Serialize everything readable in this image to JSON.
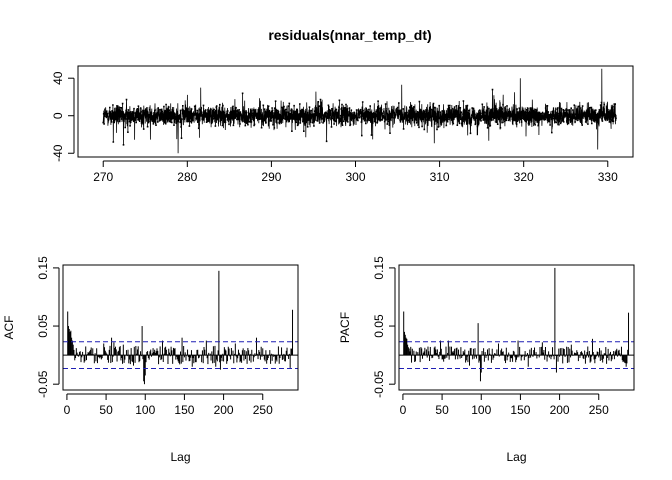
{
  "chart_data": [
    {
      "type": "line",
      "id": "residuals",
      "title": "residuals(nnar_temp_dt)",
      "xlabel": "",
      "ylabel": "",
      "xlim": [
        267,
        333
      ],
      "ylim": [
        -44,
        53
      ],
      "xticks": [
        270,
        280,
        290,
        300,
        310,
        320,
        330
      ],
      "yticks": [
        -40,
        0,
        40
      ],
      "x_range": [
        270,
        331
      ],
      "n_points": 3500,
      "typical_spread": 10,
      "extremes": [
        {
          "x": 329.3,
          "y": 50
        },
        {
          "x": 278.9,
          "y": -40
        },
        {
          "x": 328.8,
          "y": -36
        },
        {
          "x": 319.6,
          "y": 40
        },
        {
          "x": 305.5,
          "y": 33
        },
        {
          "x": 272.4,
          "y": -31
        },
        {
          "x": 281.6,
          "y": 30
        },
        {
          "x": 271.2,
          "y": -28
        }
      ],
      "marker": "dot-line",
      "grid": false
    },
    {
      "type": "bar",
      "id": "acf",
      "title": "",
      "xlabel": "Lag",
      "ylabel": "ACF",
      "xlim": [
        -5,
        295
      ],
      "ylim": [
        -0.06,
        0.155
      ],
      "xticks": [
        0,
        50,
        100,
        150,
        200,
        250
      ],
      "yticks": [
        -0.05,
        0.05,
        0.15
      ],
      "conf_band": 0.023,
      "n_lags": 288,
      "spikes": [
        {
          "lag": 1,
          "value": 0.075
        },
        {
          "lag": 2,
          "value": 0.05
        },
        {
          "lag": 3,
          "value": 0.045
        },
        {
          "lag": 4,
          "value": 0.04
        },
        {
          "lag": 5,
          "value": 0.042
        },
        {
          "lag": 6,
          "value": 0.03
        },
        {
          "lag": 7,
          "value": 0.025
        },
        {
          "lag": 8,
          "value": 0.018
        },
        {
          "lag": 12,
          "value": 0.012
        },
        {
          "lag": 22,
          "value": -0.013
        },
        {
          "lag": 35,
          "value": -0.014
        },
        {
          "lag": 47,
          "value": 0.02
        },
        {
          "lag": 57,
          "value": 0.03
        },
        {
          "lag": 60,
          "value": 0.022
        },
        {
          "lag": 72,
          "value": 0.018
        },
        {
          "lag": 85,
          "value": -0.018
        },
        {
          "lag": 96,
          "value": 0.05
        },
        {
          "lag": 98,
          "value": -0.045
        },
        {
          "lag": 99,
          "value": -0.05
        },
        {
          "lag": 100,
          "value": -0.035
        },
        {
          "lag": 110,
          "value": 0.012
        },
        {
          "lag": 122,
          "value": 0.025
        },
        {
          "lag": 135,
          "value": -0.015
        },
        {
          "lag": 147,
          "value": 0.03
        },
        {
          "lag": 160,
          "value": -0.02
        },
        {
          "lag": 178,
          "value": 0.025
        },
        {
          "lag": 190,
          "value": -0.02
        },
        {
          "lag": 194,
          "value": 0.145
        },
        {
          "lag": 196,
          "value": -0.025
        },
        {
          "lag": 215,
          "value": 0.02
        },
        {
          "lag": 230,
          "value": -0.015
        },
        {
          "lag": 242,
          "value": 0.03
        },
        {
          "lag": 260,
          "value": -0.015
        },
        {
          "lag": 270,
          "value": 0.015
        },
        {
          "lag": 285,
          "value": -0.022
        },
        {
          "lag": 288,
          "value": 0.078
        }
      ],
      "noise_amplitude": 0.016,
      "grid": false
    },
    {
      "type": "bar",
      "id": "pacf",
      "title": "",
      "xlabel": "Lag",
      "ylabel": "PACF",
      "xlim": [
        -5,
        295
      ],
      "ylim": [
        -0.06,
        0.155
      ],
      "xticks": [
        0,
        50,
        100,
        150,
        200,
        250
      ],
      "yticks": [
        -0.05,
        0.05,
        0.15
      ],
      "conf_band": 0.023,
      "n_lags": 288,
      "spikes": [
        {
          "lag": 1,
          "value": 0.075
        },
        {
          "lag": 2,
          "value": 0.04
        },
        {
          "lag": 3,
          "value": 0.035
        },
        {
          "lag": 4,
          "value": 0.03
        },
        {
          "lag": 5,
          "value": 0.028
        },
        {
          "lag": 6,
          "value": 0.018
        },
        {
          "lag": 22,
          "value": -0.012
        },
        {
          "lag": 48,
          "value": 0.025
        },
        {
          "lag": 58,
          "value": 0.025
        },
        {
          "lag": 85,
          "value": -0.018
        },
        {
          "lag": 96,
          "value": 0.055
        },
        {
          "lag": 99,
          "value": -0.045
        },
        {
          "lag": 100,
          "value": -0.03
        },
        {
          "lag": 122,
          "value": 0.02
        },
        {
          "lag": 147,
          "value": 0.025
        },
        {
          "lag": 160,
          "value": -0.02
        },
        {
          "lag": 178,
          "value": 0.022
        },
        {
          "lag": 194,
          "value": 0.15
        },
        {
          "lag": 196,
          "value": -0.03
        },
        {
          "lag": 215,
          "value": 0.018
        },
        {
          "lag": 242,
          "value": 0.028
        },
        {
          "lag": 260,
          "value": -0.015
        },
        {
          "lag": 285,
          "value": -0.02
        },
        {
          "lag": 288,
          "value": 0.073
        }
      ],
      "noise_amplitude": 0.015,
      "grid": false
    }
  ]
}
